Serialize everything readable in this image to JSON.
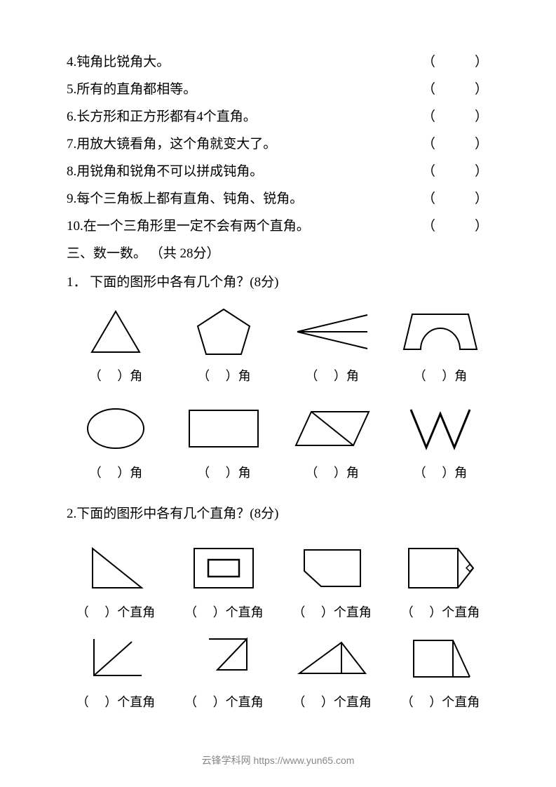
{
  "tf_questions": [
    {
      "num": "4",
      "text": "钝角比锐角大。"
    },
    {
      "num": "5",
      "text": "所有的直角都相等。"
    },
    {
      "num": "6",
      "text": "长方形和正方形都有4个直角。"
    },
    {
      "num": "7",
      "text": "用放大镜看角，这个角就变大了。"
    },
    {
      "num": "8",
      "text": "用锐角和锐角不可以拼成钝角。"
    },
    {
      "num": "9",
      "text": "每个三角板上都有直角、钝角、锐角。"
    },
    {
      "num": "10",
      "text": "在一个三角形里一定不会有两个直角。"
    }
  ],
  "tf_paren": "（        ）",
  "section3_title": "三、数一数。 （共 28分）",
  "q1_title": "1． 下面的图形中各有几个角？(8分)",
  "q2_title": "2.下面的图形中各有几个直角？(8分)",
  "label_angle": "（     ）角",
  "label_right": "（     ）个直角",
  "footer_text": "云锋学科网 https://www.yun65.com",
  "stroke": "#000000",
  "stroke_w": 2
}
